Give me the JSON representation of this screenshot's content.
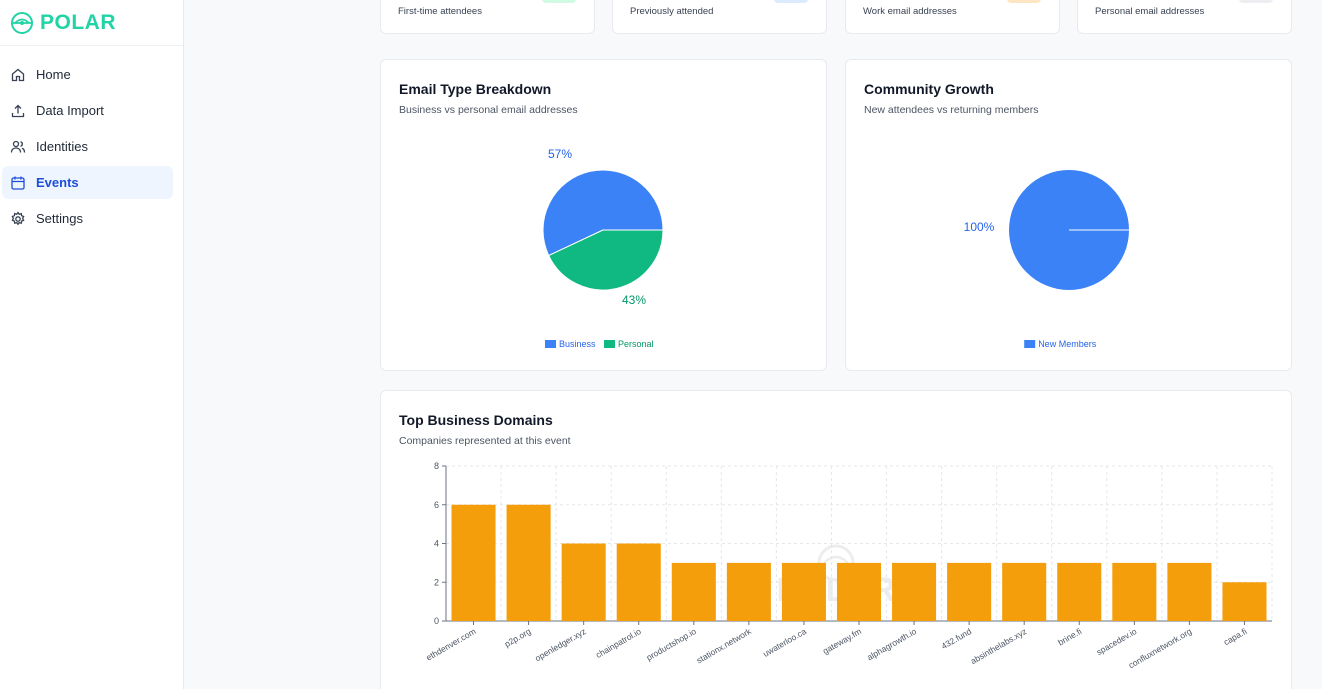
{
  "brand": {
    "name": "POLAR"
  },
  "sidebar": {
    "items": [
      {
        "label": "Home",
        "icon": "home-icon"
      },
      {
        "label": "Data Import",
        "icon": "upload-icon"
      },
      {
        "label": "Identities",
        "icon": "users-icon"
      },
      {
        "label": "Events",
        "icon": "calendar-icon",
        "active": true
      },
      {
        "label": "Settings",
        "icon": "gear-icon"
      }
    ]
  },
  "stats": [
    {
      "label": "First-time attendees",
      "chip_color": "#d1fae5"
    },
    {
      "label": "Previously attended",
      "chip_color": "#dbeafe"
    },
    {
      "label": "Work email addresses",
      "chip_color": "#fde7c2"
    },
    {
      "label": "Personal email addresses",
      "chip_color": "#eceef1"
    }
  ],
  "email_panel": {
    "title": "Email Type Breakdown",
    "subtitle": "Business vs personal email addresses"
  },
  "growth_panel": {
    "title": "Community Growth",
    "subtitle": "New attendees vs returning members"
  },
  "domains_panel": {
    "title": "Top Business Domains",
    "subtitle": "Companies represented at this event"
  },
  "watermark": "POLAR",
  "chart_data": [
    {
      "type": "pie",
      "title": "Email Type Breakdown",
      "subtitle": "Business vs personal email addresses",
      "labels": [
        "Business",
        "Personal"
      ],
      "values": [
        57,
        43
      ],
      "value_labels": [
        "57%",
        "43%"
      ],
      "colors": [
        "#3b82f6",
        "#10b981"
      ],
      "label_colors": [
        "#2563eb",
        "#059669"
      ],
      "legend": "bottom"
    },
    {
      "type": "pie",
      "title": "Community Growth",
      "subtitle": "New attendees vs returning members",
      "labels": [
        "New Members"
      ],
      "values": [
        100
      ],
      "value_labels": [
        "100%"
      ],
      "colors": [
        "#3b82f6"
      ],
      "label_colors": [
        "#2563eb"
      ],
      "legend": "bottom"
    },
    {
      "type": "bar",
      "title": "Top Business Domains",
      "subtitle": "Companies represented at this event",
      "categories": [
        "ethdenver.com",
        "p2p.org",
        "openledger.xyz",
        "chainpatrol.io",
        "productshop.io",
        "stationx.network",
        "uwaterloo.ca",
        "gateway.fm",
        "alphagrowth.io",
        "432.fund",
        "absinthelabs.xyz",
        "brine.fi",
        "spacedev.io",
        "confluxnetwork.org",
        "capa.fi"
      ],
      "values": [
        6,
        6,
        4,
        4,
        3,
        3,
        3,
        3,
        3,
        3,
        3,
        3,
        3,
        3,
        2
      ],
      "yticks": [
        0,
        2,
        4,
        6,
        8
      ],
      "ylim": [
        0,
        8
      ],
      "color": "#f59e0b",
      "grid": true
    }
  ]
}
